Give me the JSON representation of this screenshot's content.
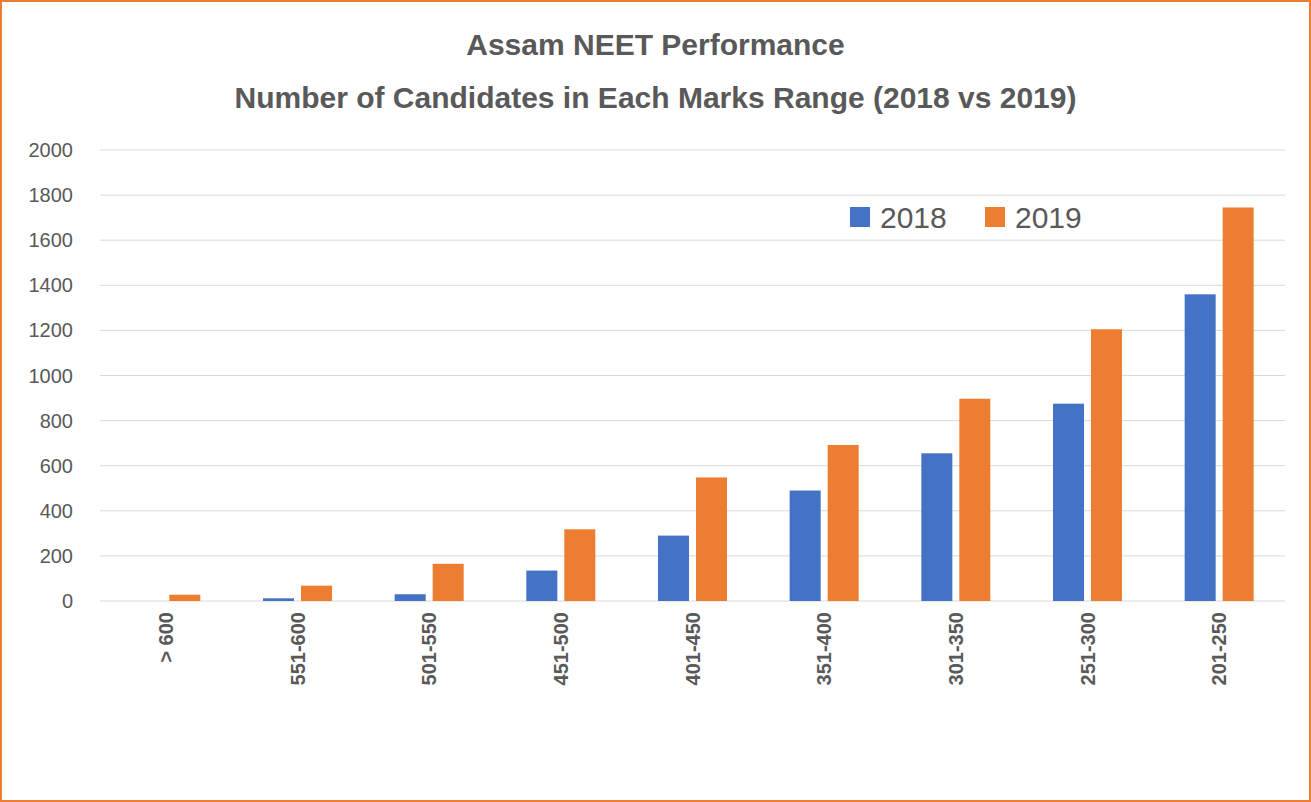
{
  "chart_data": {
    "type": "bar",
    "title": "Assam NEET Performance",
    "subtitle": "Number of Candidates in Each Marks Range (2018 vs 2019)",
    "categories": [
      "> 600",
      "551-600",
      "501-550",
      "451-500",
      "401-450",
      "351-400",
      "301-350",
      "251-300",
      "201-250"
    ],
    "series": [
      {
        "name": "2018",
        "color": "#4472c4",
        "values": [
          0,
          12,
          30,
          135,
          290,
          490,
          655,
          875,
          1360
        ]
      },
      {
        "name": "2019",
        "color": "#ed7d31",
        "values": [
          28,
          68,
          165,
          318,
          548,
          692,
          897,
          1205,
          1745
        ]
      }
    ],
    "ylim": [
      0,
      2000
    ],
    "yticks": [
      0,
      200,
      400,
      600,
      800,
      1000,
      1200,
      1400,
      1600,
      1800,
      2000
    ],
    "grid": true,
    "legend": "upper right"
  }
}
